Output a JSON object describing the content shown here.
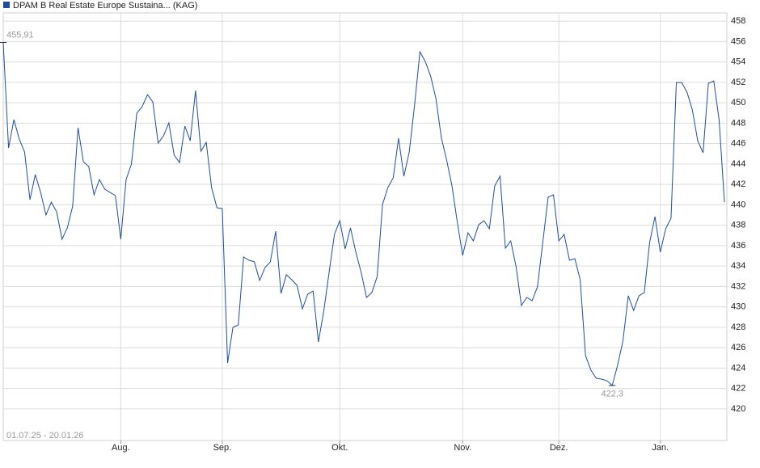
{
  "chart_data": {
    "type": "line",
    "legend_label": "DPAM B Real Estate Europe Sustaina... (KAG)",
    "date_range": "01.07.25 - 20.01.26",
    "series": [
      {
        "name": "DPAM B Real Estate Europe Sustaina... (KAG)",
        "color": "#1f4e9c",
        "values": [
          455.91,
          445.57,
          448.34,
          446.44,
          445.17,
          440.5,
          442.96,
          441.21,
          439.0,
          440.26,
          439.31,
          436.62,
          437.73,
          439.87,
          447.55,
          444.22,
          443.75,
          440.98,
          442.48,
          441.53,
          441.21,
          440.9,
          436.62,
          442.48,
          443.99,
          448.97,
          449.61,
          450.79,
          450.08,
          446.04,
          446.76,
          448.02,
          444.86,
          444.14,
          447.71,
          446.28,
          451.19,
          445.25,
          446.12,
          441.69,
          439.71,
          439.63,
          424.51,
          427.99,
          428.23,
          434.88,
          434.56,
          434.41,
          432.58,
          433.85,
          434.41,
          437.41,
          431.32,
          433.14,
          432.66,
          432.11,
          429.81,
          431.24,
          431.55,
          426.57,
          429.58,
          433.38,
          437.1,
          438.44,
          435.67,
          437.73,
          435.36,
          433.38,
          430.92,
          431.4,
          432.98,
          440.03,
          441.69,
          442.64,
          446.52,
          442.8,
          445.17,
          449.77,
          454.99,
          454.04,
          452.62,
          450.4,
          446.6,
          444.38,
          441.85,
          438.29,
          435.04,
          437.26,
          436.46,
          438.05,
          438.44,
          437.65,
          441.85,
          442.8,
          435.75,
          436.46,
          433.93,
          430.13,
          430.92,
          430.6,
          431.95,
          436.31,
          440.74,
          440.98,
          436.46,
          437.1,
          434.56,
          434.72,
          432.66,
          425.22,
          423.8,
          423.0,
          422.92,
          422.76,
          422.3,
          424.27,
          426.65,
          431.08,
          429.65,
          431.08,
          431.4,
          436.31,
          438.84,
          435.36,
          437.65,
          438.68,
          451.98,
          451.98,
          451.03,
          449.29,
          446.28,
          445.09,
          451.9,
          452.14,
          448.34,
          440.26
        ]
      }
    ],
    "max_label": {
      "value": 455.91,
      "label": "455,91"
    },
    "min_label": {
      "value": 422.3,
      "label": "422,3"
    },
    "xlim": [
      0,
      135
    ],
    "xticks": [
      {
        "value": 22,
        "label": "Aug."
      },
      {
        "value": 41,
        "label": "Sep."
      },
      {
        "value": 63,
        "label": "Okt."
      },
      {
        "value": 86,
        "label": "Nov."
      },
      {
        "value": 104,
        "label": "Dez."
      },
      {
        "value": 123,
        "label": "Jan."
      }
    ],
    "ylim": [
      416.9,
      458.8
    ],
    "yticks": [
      420,
      422,
      424,
      426,
      428,
      430,
      432,
      434,
      436,
      438,
      440,
      442,
      444,
      446,
      448,
      450,
      452,
      454,
      456,
      458
    ],
    "grid": true
  }
}
